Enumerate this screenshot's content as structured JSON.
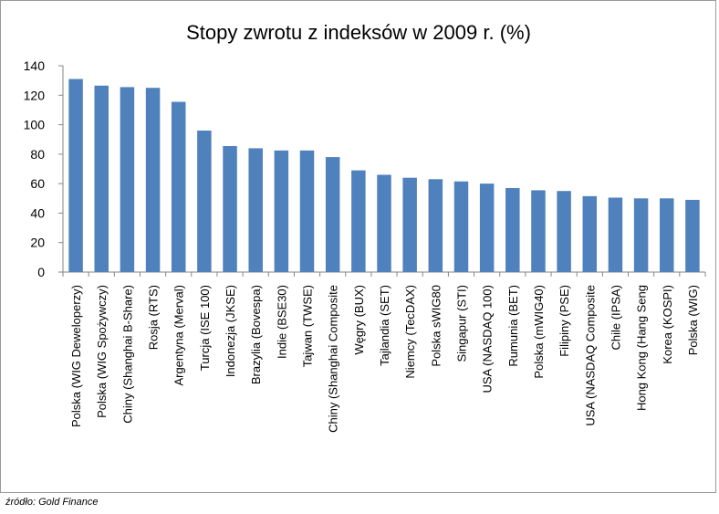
{
  "chart_data": {
    "type": "bar",
    "title": "Stopy zwrotu z indeksów w 2009 r. (%)",
    "xlabel": "",
    "ylabel": "",
    "ylim": [
      0,
      140
    ],
    "yticks": [
      0,
      20,
      40,
      60,
      80,
      100,
      120,
      140
    ],
    "grid": false,
    "legend": "none",
    "bar_color": "#4f81bd",
    "categories": [
      "Polska (WIG Deweloperzy)",
      "Polska (WIG Spożywczy)",
      "Chiny (Shanghai B-Share)",
      "Rosja (RTS)",
      "Argentyna (Merval)",
      "Turcja (ISE 100)",
      "Indonezja (JKSE)",
      "Brazylia (Bovespa)",
      "Indie (BSE30)",
      "Tajwan (TWSE)",
      "Chiny (Shanghai Composite",
      "Węgry (BUX)",
      "Tajlandia (SET)",
      "Niemcy (TecDAX)",
      "Polska sWIG80",
      "Singapur (STI)",
      "USA (NASDAQ 100)",
      "Rumunia (BET)",
      "Polska (mWIG40)",
      "Filipiny (PSE)",
      "USA (NASDAQ Composite",
      "Chile (IPSA)",
      "Hong Kong (Hang Seng",
      "Korea (KOSPI)",
      "Polska (WIG)"
    ],
    "values": [
      131,
      126.5,
      125.5,
      125,
      115.5,
      96,
      85.5,
      84,
      82.5,
      82.5,
      78,
      69,
      66,
      64,
      63,
      61.5,
      60,
      57,
      55.5,
      55,
      51.5,
      50.5,
      50,
      50,
      49
    ]
  },
  "source": "źródło: Gold Finance"
}
